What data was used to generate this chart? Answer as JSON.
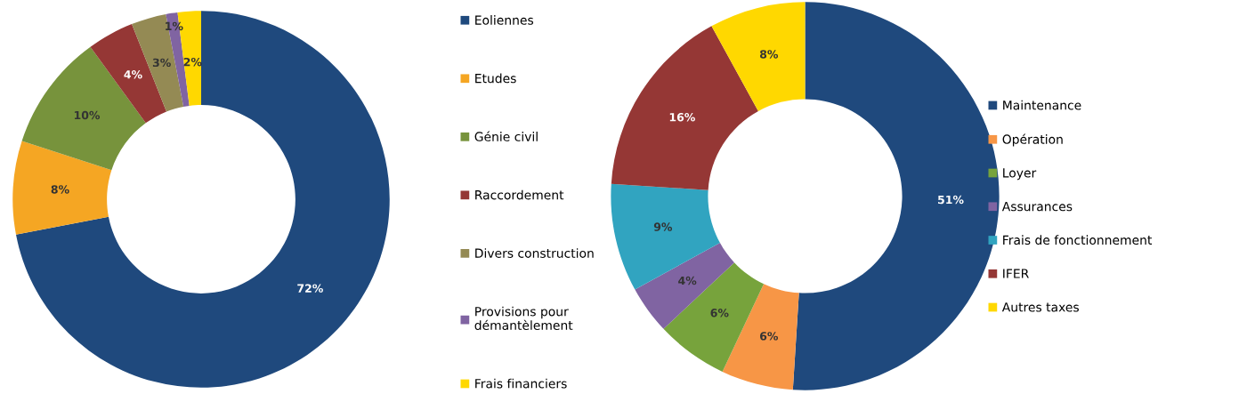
{
  "chart_data": [
    {
      "type": "donut",
      "categories": [
        "Eoliennes",
        "Etudes",
        "Génie civil",
        "Raccordement",
        "Divers construction",
        "Provisions pour\ndémantèlement",
        "Frais financiers"
      ],
      "values": [
        72,
        8,
        10,
        4,
        3,
        1,
        2
      ],
      "colors": [
        "#1f497d",
        "#f5a623",
        "#77933c",
        "#953735",
        "#948a54",
        "#8064a2",
        "#ffd800"
      ],
      "value_labels": [
        "72%",
        "8%",
        "10%",
        "4%",
        "3%",
        "1%",
        "2%"
      ],
      "legend": "right"
    },
    {
      "type": "donut",
      "categories": [
        "Maintenance",
        "Opération",
        "Loyer",
        "Assurances",
        "Frais de fonctionnement",
        "IFER",
        "Autres taxes"
      ],
      "values": [
        51,
        6,
        6,
        4,
        9,
        16,
        8
      ],
      "colors": [
        "#1f497d",
        "#f79646",
        "#77a33c",
        "#8064a2",
        "#31a4c0",
        "#953735",
        "#ffd800"
      ],
      "value_labels": [
        "51%",
        "6%",
        "6%",
        "4%",
        "9%",
        "16%",
        "8%"
      ],
      "legend": "right"
    }
  ]
}
